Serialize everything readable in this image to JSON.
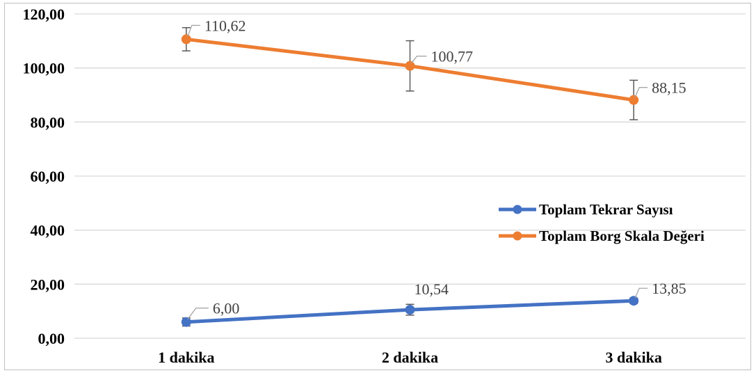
{
  "chart_data": {
    "type": "line",
    "title": "",
    "xlabel": "",
    "ylabel": "",
    "categories": [
      "1 dakika",
      "2 dakika",
      "3 dakika"
    ],
    "ylim": [
      0,
      120
    ],
    "yticks": [
      "0,00",
      "20,00",
      "40,00",
      "60,00",
      "80,00",
      "100,00",
      "120,00"
    ],
    "grid": true,
    "legend_position": "right",
    "series": [
      {
        "name": "Toplam Tekrar Sayısı",
        "color": "#4472c4",
        "values": [
          6.0,
          10.54,
          13.85
        ],
        "labels": [
          "6,00",
          "10,54",
          "13,85"
        ],
        "error": [
          1.5,
          2.0,
          1.0
        ]
      },
      {
        "name": "Toplam Borg Skala Değeri",
        "color": "#ed7d31",
        "values": [
          110.62,
          100.77,
          88.15
        ],
        "labels": [
          "110,62",
          "100,77",
          "88,15"
        ],
        "error": [
          4.3,
          9.3,
          7.3
        ]
      }
    ]
  }
}
